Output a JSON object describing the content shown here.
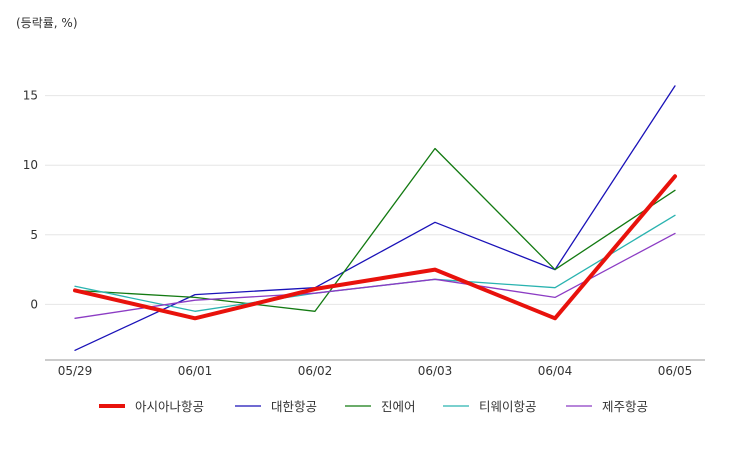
{
  "chart_data": {
    "type": "line",
    "unit_label": "(등락률, %)",
    "categories": [
      "05/29",
      "06/01",
      "06/02",
      "06/03",
      "06/04",
      "06/05"
    ],
    "ylim": [
      -4,
      19
    ],
    "yticks": [
      0,
      5,
      10,
      15
    ],
    "grid": true,
    "legend_position": "bottom",
    "series": [
      {
        "name": "아시아나항공",
        "color": "#e8120c",
        "emphasis": true,
        "values": [
          1.0,
          -1.0,
          1.1,
          2.5,
          -1.0,
          9.2
        ]
      },
      {
        "name": "대한항공",
        "color": "#1a12b8",
        "emphasis": false,
        "values": [
          -3.3,
          0.7,
          1.2,
          5.9,
          2.5,
          15.7
        ]
      },
      {
        "name": "진에어",
        "color": "#137a12",
        "emphasis": false,
        "values": [
          1.0,
          0.5,
          -0.5,
          11.2,
          2.5,
          8.2
        ]
      },
      {
        "name": "티웨이항공",
        "color": "#2ab3b0",
        "emphasis": false,
        "values": [
          1.3,
          -0.5,
          0.8,
          1.8,
          1.2,
          6.4
        ]
      },
      {
        "name": "제주항공",
        "color": "#8c3cc4",
        "emphasis": false,
        "values": [
          -1.0,
          0.3,
          0.8,
          1.8,
          0.5,
          5.1
        ]
      }
    ]
  }
}
